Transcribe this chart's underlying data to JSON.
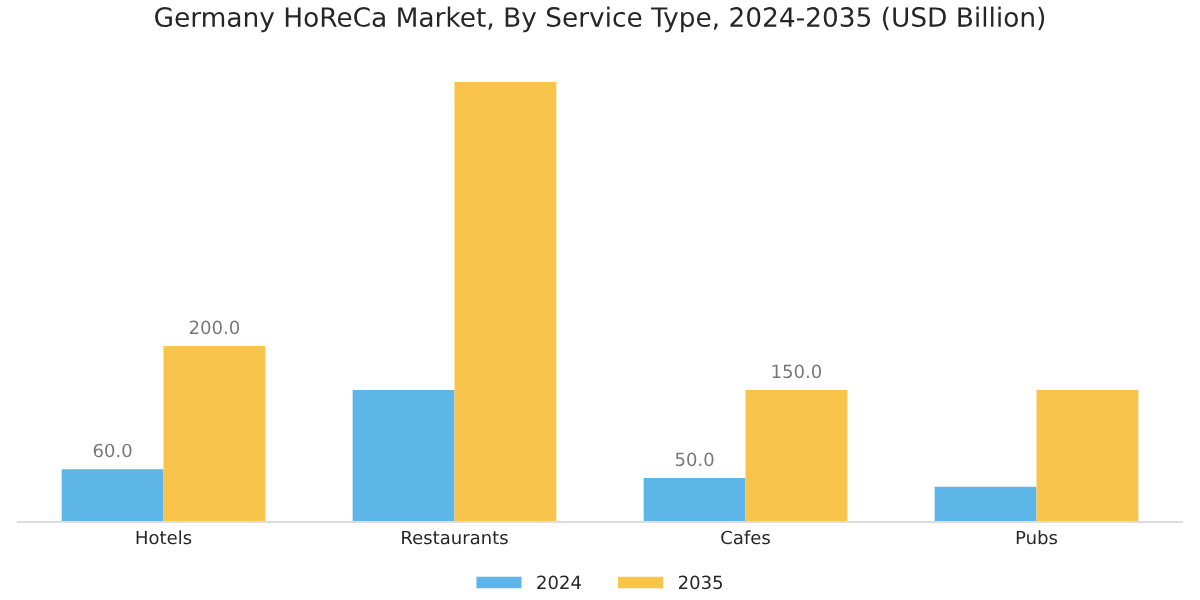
{
  "chart_data": {
    "type": "bar",
    "title": "Germany HoReCa Market, By Service Type, 2024-2035 (USD Billion)",
    "categories": [
      "Hotels",
      "Restaurants",
      "Cafes",
      "Pubs"
    ],
    "series": [
      {
        "name": "2024",
        "color": "#5db5e8",
        "values": [
          60,
          150,
          50,
          40
        ],
        "value_labels": [
          "60.0",
          null,
          "50.0",
          null
        ]
      },
      {
        "name": "2035",
        "color": "#f9c44c",
        "values": [
          200,
          500,
          150,
          150
        ],
        "value_labels": [
          "200.0",
          null,
          "150.0",
          null
        ]
      }
    ],
    "legend": "bottom",
    "grid": false
  }
}
